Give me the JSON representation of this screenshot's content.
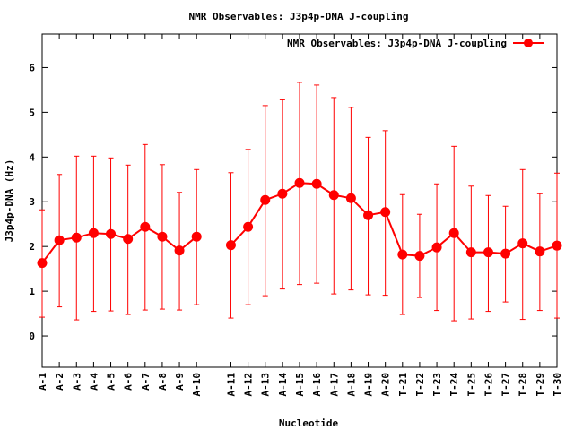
{
  "chart_data": {
    "type": "line",
    "title": "NMR Observables: J3p4p-DNA J-coupling",
    "xlabel": "Nucleotide",
    "ylabel": "J3p4p-DNA (Hz)",
    "ylim": [
      -0.7,
      6.75
    ],
    "yticks": [
      0,
      1,
      2,
      3,
      4,
      5,
      6
    ],
    "grid": false,
    "legend": "top-right",
    "categories": [
      "A-1",
      "A-2",
      "A-3",
      "A-4",
      "A-5",
      "A-6",
      "A-7",
      "A-8",
      "A-9",
      "A-10",
      "A-11",
      "A-12",
      "A-13",
      "A-14",
      "A-15",
      "A-16",
      "A-17",
      "A-18",
      "A-19",
      "A-20",
      "T-21",
      "T-22",
      "T-23",
      "T-24",
      "T-25",
      "T-26",
      "T-27",
      "T-28",
      "T-29",
      "T-30"
    ],
    "x": [
      1,
      2,
      3,
      4,
      5,
      6,
      7,
      8,
      9,
      10,
      12,
      13,
      14,
      15,
      16,
      17,
      18,
      19,
      20,
      21,
      22,
      23,
      24,
      25,
      26,
      27,
      28,
      29,
      30,
      31
    ],
    "xlim": [
      1,
      31
    ],
    "series": [
      {
        "name": "NMR Observables: J3p4p-DNA J-coupling",
        "color": "#ff0000",
        "values": [
          1.63,
          2.14,
          2.2,
          2.3,
          2.28,
          2.17,
          2.44,
          2.22,
          1.91,
          2.22,
          2.03,
          2.44,
          3.04,
          3.18,
          3.42,
          3.4,
          3.15,
          3.08,
          2.7,
          2.77,
          1.82,
          1.79,
          1.98,
          2.3,
          1.87,
          1.87,
          1.84,
          2.07,
          1.89,
          2.02
        ],
        "err_low": [
          0.42,
          0.65,
          0.36,
          0.55,
          0.56,
          0.48,
          0.58,
          0.6,
          0.58,
          0.7,
          0.4,
          0.7,
          0.9,
          1.05,
          1.15,
          1.18,
          0.94,
          1.03,
          0.92,
          0.91,
          0.48,
          0.86,
          0.57,
          0.34,
          0.38,
          0.55,
          0.76,
          0.37,
          0.57,
          0.4
        ],
        "err_high": [
          2.82,
          3.61,
          4.02,
          4.02,
          3.98,
          3.82,
          4.28,
          3.83,
          3.21,
          3.72,
          3.65,
          4.17,
          5.15,
          5.28,
          5.67,
          5.61,
          5.33,
          5.11,
          4.44,
          4.59,
          3.16,
          2.72,
          3.4,
          4.24,
          3.35,
          3.14,
          2.9,
          3.72,
          3.18,
          3.64
        ]
      }
    ],
    "breaks_after_index": [
      9
    ]
  }
}
